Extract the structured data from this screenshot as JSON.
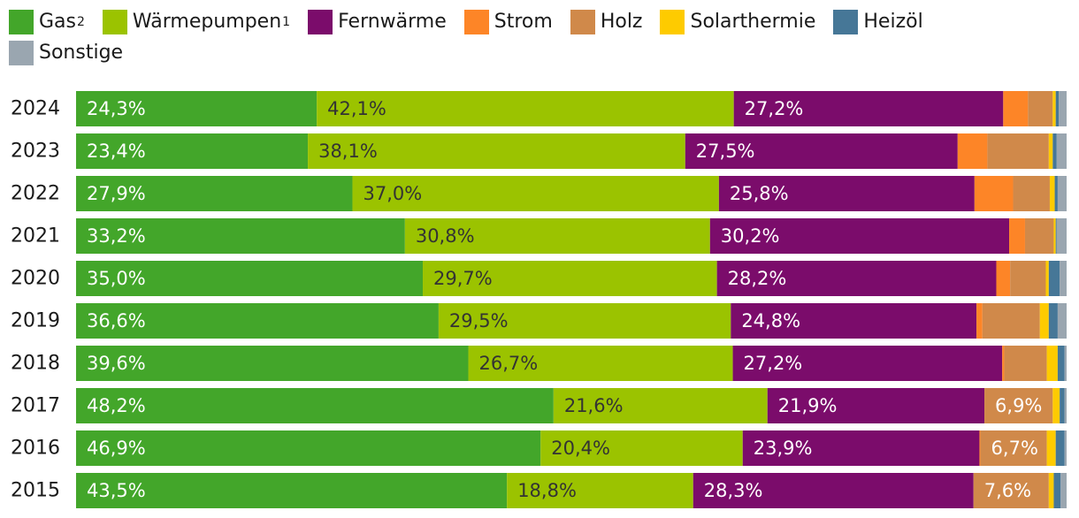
{
  "chart_data": {
    "type": "bar",
    "orientation": "horizontal",
    "stacked": true,
    "normalized": true,
    "unit": "%",
    "title": "",
    "xlabel": "",
    "ylabel": "",
    "xlim": [
      0,
      100
    ],
    "categories": [
      "2024",
      "2023",
      "2022",
      "2021",
      "2020",
      "2019",
      "2018",
      "2017",
      "2016",
      "2015"
    ],
    "series": [
      {
        "name": "Gas",
        "sup": "2",
        "color": "#43a62a",
        "label_color": "#ffffff",
        "values": [
          24.3,
          23.4,
          27.9,
          33.2,
          35.0,
          36.6,
          39.6,
          48.2,
          46.9,
          43.5
        ],
        "labels": [
          "24,3%",
          "23,4%",
          "27,9%",
          "33,2%",
          "35,0%",
          "36,6%",
          "39,6%",
          "48,2%",
          "46,9%",
          "43,5%"
        ]
      },
      {
        "name": "Wärmepumpen",
        "sup": "1",
        "color": "#9bc300",
        "label_color": "#333333",
        "values": [
          42.1,
          38.1,
          37.0,
          30.8,
          29.7,
          29.5,
          26.7,
          21.6,
          20.4,
          18.8
        ],
        "labels": [
          "42,1%",
          "38,1%",
          "37,0%",
          "30,8%",
          "29,7%",
          "29,5%",
          "26,7%",
          "21,6%",
          "20,4%",
          "18,8%"
        ]
      },
      {
        "name": "Fernwärme",
        "sup": "",
        "color": "#7b0c6b",
        "label_color": "#ffffff",
        "values": [
          27.2,
          27.5,
          25.8,
          30.2,
          28.2,
          24.8,
          27.2,
          21.9,
          23.9,
          28.3
        ],
        "labels": [
          "27,2%",
          "27,5%",
          "25,8%",
          "30,2%",
          "28,2%",
          "24,8%",
          "27,2%",
          "21,9%",
          "23,9%",
          "28,3%"
        ]
      },
      {
        "name": "Strom",
        "sup": "",
        "color": "#fd8527",
        "label_color": "#ffffff",
        "values": [
          2.5,
          3.0,
          3.9,
          1.6,
          1.4,
          0.6,
          0.2,
          0.0,
          0.1,
          0.0
        ],
        "labels": [
          "",
          "",
          "",
          "",
          "",
          "",
          "",
          "",
          "",
          ""
        ]
      },
      {
        "name": "Holz",
        "sup": "",
        "color": "#d0894a",
        "label_color": "#ffffff",
        "values": [
          2.5,
          6.2,
          3.7,
          2.9,
          3.6,
          5.8,
          4.3,
          6.9,
          6.7,
          7.6
        ],
        "labels": [
          "",
          "",
          "",
          "",
          "",
          "",
          "",
          "6,9%",
          "6,7%",
          "7,6%"
        ]
      },
      {
        "name": "Solarthermie",
        "sup": "",
        "color": "#fecb00",
        "label_color": "#333333",
        "values": [
          0.3,
          0.4,
          0.5,
          0.2,
          0.3,
          0.9,
          1.1,
          0.7,
          0.9,
          0.5
        ],
        "labels": [
          "",
          "",
          "",
          "",
          "",
          "",
          "",
          "",
          "",
          ""
        ]
      },
      {
        "name": "Heizöl",
        "sup": "",
        "color": "#467797",
        "label_color": "#ffffff",
        "values": [
          0.3,
          0.4,
          0.3,
          0.1,
          1.1,
          0.9,
          0.7,
          0.5,
          0.9,
          0.7
        ],
        "labels": [
          "",
          "",
          "",
          "",
          "",
          "",
          "",
          "",
          "",
          ""
        ]
      },
      {
        "name": "Sonstige",
        "sup": "",
        "color": "#9aa6b0",
        "label_color": "#333333",
        "values": [
          0.8,
          1.0,
          0.9,
          1.0,
          0.7,
          0.9,
          0.2,
          0.2,
          0.2,
          0.6
        ],
        "labels": [
          "",
          "",
          "",
          "",
          "",
          "",
          "",
          "",
          "",
          ""
        ]
      }
    ]
  }
}
